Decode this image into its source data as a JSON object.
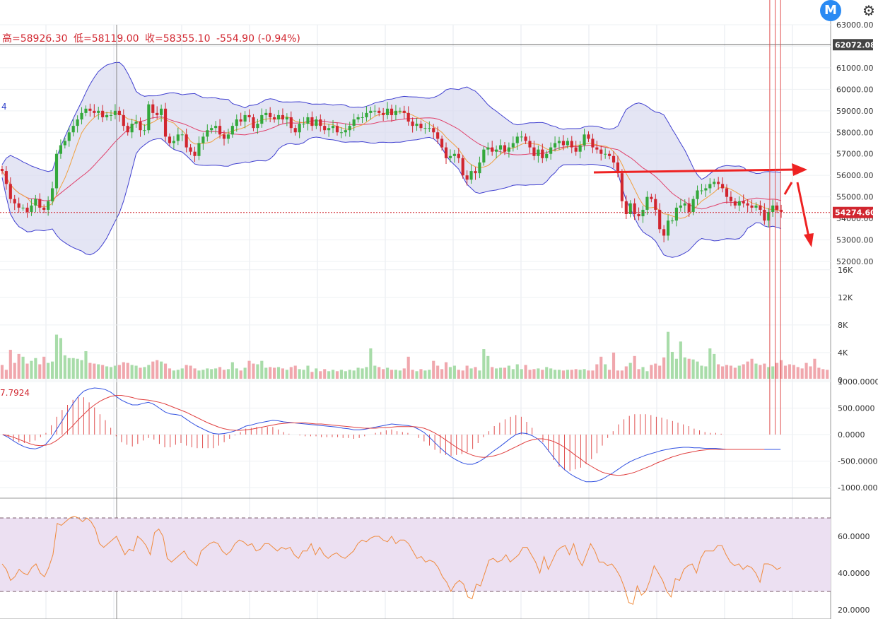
{
  "header": {
    "high_label": "高=58926.30",
    "low_label": "低=58119.00",
    "close_label": "收=58355.10",
    "change_label": "-554.90 (-0.94%)"
  },
  "macd_value_label": "7.7924",
  "ma_value_label": "4",
  "icons": {
    "logo": "M",
    "settings": "gear-icon"
  },
  "colors": {
    "up": "#33a83b",
    "down": "#d1262f",
    "boll_fill": "#d9daf0",
    "boll_line": "#4040d0",
    "ma_pink": "#e0406a",
    "ma_orange": "#f0a040",
    "rsi": "#f08a3c",
    "rsi_band": "#ece0f2",
    "macd_dif": "#3050e0",
    "macd_dea": "#e04040"
  },
  "price_badges": {
    "top": "62072.08",
    "current": "54274.60"
  },
  "chart_data": [
    {
      "type": "candlestick",
      "name": "price",
      "ylim": [
        52000,
        63000
      ],
      "yticks": [
        "63000.00",
        "62000.00",
        "61000.00",
        "60000.00",
        "59000.00",
        "58000.00",
        "57000.00",
        "56000.00",
        "55000.00",
        "54000.00",
        "53000.00",
        "52000.00"
      ],
      "close": [
        56200,
        55600,
        54900,
        54700,
        54500,
        54500,
        54300,
        54600,
        54900,
        54500,
        54400,
        54800,
        55400,
        57000,
        57400,
        57600,
        58000,
        58300,
        58600,
        58900,
        59100,
        59000,
        58900,
        59000,
        58700,
        58800,
        58800,
        59000,
        58800,
        58300,
        58000,
        58400,
        58500,
        58100,
        58100,
        59300,
        58900,
        58800,
        59100,
        57800,
        57500,
        57600,
        57900,
        57900,
        57300,
        57100,
        56900,
        57500,
        57800,
        58100,
        58200,
        58300,
        57900,
        57700,
        57900,
        58300,
        58600,
        58500,
        58800,
        58700,
        58200,
        58400,
        58800,
        58900,
        58700,
        58600,
        58800,
        58600,
        58700,
        58200,
        58000,
        58400,
        58400,
        58700,
        58300,
        58600,
        58300,
        58100,
        58200,
        58300,
        58000,
        58000,
        58100,
        58300,
        58600,
        58700,
        58700,
        58900,
        59000,
        59000,
        58900,
        58800,
        59100,
        58800,
        59000,
        59000,
        58900,
        58500,
        58300,
        58400,
        58200,
        58200,
        58200,
        58000,
        57700,
        57300,
        56800,
        56900,
        57000,
        56800,
        56000,
        55800,
        56200,
        56100,
        56600,
        57200,
        57300,
        57100,
        57200,
        57400,
        57100,
        57300,
        57500,
        57800,
        57800,
        57600,
        57300,
        56900,
        57200,
        56800,
        57000,
        57300,
        57500,
        57600,
        57400,
        57600,
        57300,
        57100,
        57400,
        57900,
        57700,
        57300,
        57200,
        57000,
        57000,
        56900,
        56600,
        56100,
        54800,
        54200,
        54700,
        54200,
        54100,
        54400,
        55000,
        54900,
        54400,
        53500,
        53200,
        53900,
        53900,
        54500,
        54600,
        54700,
        54300,
        54900,
        55300,
        55300,
        55400,
        55600,
        55700,
        55600,
        55400,
        55000,
        54800,
        54600,
        54800,
        54700,
        54600,
        54500,
        54600,
        54400,
        53900,
        54300,
        54600,
        54400,
        54300
      ],
      "note_lines": "right-pointing arrow near 56100 and down arrow annotation"
    },
    {
      "type": "bar",
      "name": "volume",
      "ylim": [
        0,
        17000
      ],
      "yticks": [
        "16K",
        "12K",
        "8K",
        "4K",
        "0"
      ],
      "values": [
        2200,
        1500,
        4400,
        2500,
        3800,
        3400,
        2400,
        2800,
        3200,
        2300,
        3400,
        2500,
        2700,
        6600,
        6100,
        3600,
        3200,
        3200,
        3100,
        2900,
        4200,
        2500,
        2400,
        2300,
        2200,
        2000,
        1900,
        2100,
        2200,
        2600,
        2500,
        2200,
        2100,
        1800,
        1900,
        2200,
        2700,
        2900,
        2700,
        2400,
        1700,
        1400,
        1500,
        1700,
        2200,
        2100,
        1700,
        1400,
        1500,
        1700,
        1600,
        1700,
        1900,
        1500,
        1600,
        2600,
        1700,
        1400,
        1800,
        2800,
        2400,
        2300,
        2800,
        1800,
        1900,
        1800,
        1900,
        1700,
        1500,
        1900,
        2100,
        1600,
        1500,
        2100,
        1200,
        1700,
        1300,
        1600,
        1300,
        1500,
        1300,
        1500,
        1300,
        1500,
        1400,
        1800,
        1700,
        1900,
        4600,
        2100,
        1900,
        1600,
        1800,
        1500,
        1500,
        1400,
        1700,
        3400,
        1500,
        1300,
        1600,
        1400,
        1500,
        2800,
        2100,
        1600,
        2600,
        1900,
        2100,
        1500,
        1400,
        2100,
        1700,
        1900,
        1400,
        4500,
        3500,
        1900,
        1700,
        1800,
        1800,
        2100,
        1600,
        2300,
        1600,
        2200,
        1500,
        1600,
        1700,
        1500,
        1900,
        1700,
        1500,
        1500,
        1400,
        1500,
        1500,
        1600,
        1500,
        1600,
        1400,
        1400,
        2300,
        3400,
        2300,
        1500,
        4000,
        1400,
        1400,
        2000,
        2500,
        3500,
        1600,
        1900,
        1300,
        2200,
        2400,
        2100,
        3300,
        7000,
        4100,
        3100,
        5600,
        3300,
        3100,
        3000,
        2700,
        2100,
        2000,
        4600,
        3800,
        2300,
        2000,
        2200,
        2100,
        1800,
        2100,
        2300,
        2700,
        3100,
        2400,
        2200,
        2400,
        1900,
        2000,
        2500,
        2900,
        2100,
        2300,
        2200,
        1900,
        1700,
        2500,
        2000,
        3100,
        1800,
        1600,
        1500
      ]
    },
    {
      "type": "line",
      "name": "macd",
      "ylim": [
        -1200,
        1000
      ],
      "yticks": [
        "1000.0000",
        "500.0000",
        "0.0000",
        "-500.0000",
        "-1000.0000"
      ],
      "series": [
        {
          "name": "",
          "values": [
            0,
            -50,
            -120,
            -180,
            -230,
            -260,
            -270,
            -240,
            -180,
            -60,
            100,
            260,
            420,
            580,
            720,
            820,
            860,
            880,
            870,
            850,
            800,
            720,
            650,
            600,
            560,
            560,
            590,
            610,
            570,
            500,
            430,
            390,
            380,
            360,
            290,
            220,
            160,
            110,
            60,
            20,
            10,
            20,
            40,
            70,
            110,
            160,
            180,
            210,
            230,
            250,
            270,
            260,
            240,
            230,
            220,
            210,
            200,
            190,
            180,
            170,
            160,
            150,
            140,
            120,
            110,
            90,
            90,
            100,
            120,
            140,
            160,
            180,
            200,
            190,
            180,
            170,
            150,
            100,
            40,
            -50,
            -150,
            -250,
            -340,
            -420,
            -480,
            -530,
            -560,
            -560,
            -520,
            -460,
            -380,
            -300,
            -230,
            -150,
            -70,
            0,
            30,
            20,
            -20,
            -80,
            -170,
            -300,
            -430,
            -560,
            -660,
            -740,
            -800,
            -850,
            -890,
            -890,
            -880,
            -840,
            -780,
            -720,
            -650,
            -580,
            -520,
            -470,
            -430,
            -390,
            -360,
            -330,
            -300,
            -280,
            -260,
            -250,
            -240,
            -240,
            -250,
            -250,
            -260,
            -260,
            -260,
            -270,
            -280,
            -280,
            -280,
            -280,
            -280,
            -280,
            -280,
            -280,
            -280,
            -280,
            -280
          ]
        },
        {
          "name": "",
          "values": [
            0,
            -20,
            -50,
            -90,
            -130,
            -170,
            -200,
            -210,
            -200,
            -170,
            -110,
            -30,
            70,
            170,
            280,
            380,
            480,
            560,
            630,
            680,
            720,
            740,
            740,
            720,
            700,
            670,
            660,
            650,
            630,
            610,
            580,
            540,
            500,
            460,
            420,
            370,
            320,
            270,
            220,
            180,
            140,
            110,
            90,
            80,
            80,
            90,
            100,
            120,
            140,
            160,
            180,
            200,
            210,
            220,
            220,
            220,
            220,
            210,
            200,
            200,
            190,
            180,
            170,
            160,
            150,
            140,
            130,
            120,
            120,
            120,
            130,
            130,
            140,
            150,
            150,
            150,
            150,
            140,
            120,
            80,
            30,
            -30,
            -100,
            -170,
            -240,
            -300,
            -350,
            -390,
            -420,
            -430,
            -420,
            -400,
            -370,
            -330,
            -280,
            -230,
            -180,
            -130,
            -100,
            -80,
            -80,
            -100,
            -130,
            -180,
            -240,
            -310,
            -390,
            -460,
            -540,
            -600,
            -660,
            -710,
            -740,
            -760,
            -770,
            -760,
            -740,
            -710,
            -670,
            -630,
            -590,
            -540,
            -500,
            -460,
            -420,
            -390,
            -360,
            -340,
            -320,
            -300,
            -290,
            -280,
            -280,
            -280,
            -280,
            -280,
            -280,
            -280,
            -280,
            -280,
            -280,
            -280
          ]
        }
      ]
    },
    {
      "type": "line",
      "name": "rsi",
      "ylim": [
        15,
        80
      ],
      "yticks": [
        "60.0000",
        "40.0000",
        "20.0000"
      ],
      "series": [
        {
          "name": "",
          "values": [
            45,
            42,
            36,
            38,
            42,
            40,
            39,
            43,
            45,
            40,
            38,
            43,
            50,
            67,
            66,
            68,
            70,
            71,
            70,
            68,
            70,
            68,
            64,
            56,
            54,
            56,
            58,
            60,
            55,
            50,
            53,
            52,
            60,
            58,
            55,
            50,
            62,
            64,
            60,
            48,
            46,
            48,
            50,
            52,
            48,
            46,
            44,
            52,
            54,
            56,
            57,
            56,
            52,
            50,
            52,
            56,
            58,
            57,
            55,
            56,
            52,
            53,
            56,
            56,
            54,
            52,
            54,
            53,
            54,
            50,
            48,
            52,
            52,
            56,
            50,
            54,
            50,
            48,
            50,
            51,
            49,
            48,
            50,
            52,
            56,
            58,
            57,
            59,
            60,
            60,
            58,
            57,
            60,
            56,
            58,
            58,
            56,
            52,
            48,
            49,
            46,
            47,
            46,
            43,
            38,
            35,
            30,
            34,
            36,
            34,
            27,
            26,
            34,
            33,
            40,
            47,
            48,
            46,
            47,
            50,
            46,
            48,
            50,
            54,
            54,
            50,
            46,
            40,
            49,
            42,
            47,
            52,
            54,
            55,
            50,
            56,
            48,
            44,
            50,
            56,
            52,
            46,
            46,
            44,
            45,
            42,
            38,
            32,
            24,
            23,
            33,
            28,
            30,
            36,
            44,
            40,
            36,
            30,
            27,
            37,
            36,
            42,
            44,
            45,
            40,
            48,
            52,
            52,
            52,
            55,
            55,
            50,
            46,
            44,
            45,
            42,
            44,
            43,
            40,
            35,
            45,
            45,
            44,
            42,
            43
          ]
        }
      ],
      "bands": [
        70,
        30
      ]
    }
  ]
}
